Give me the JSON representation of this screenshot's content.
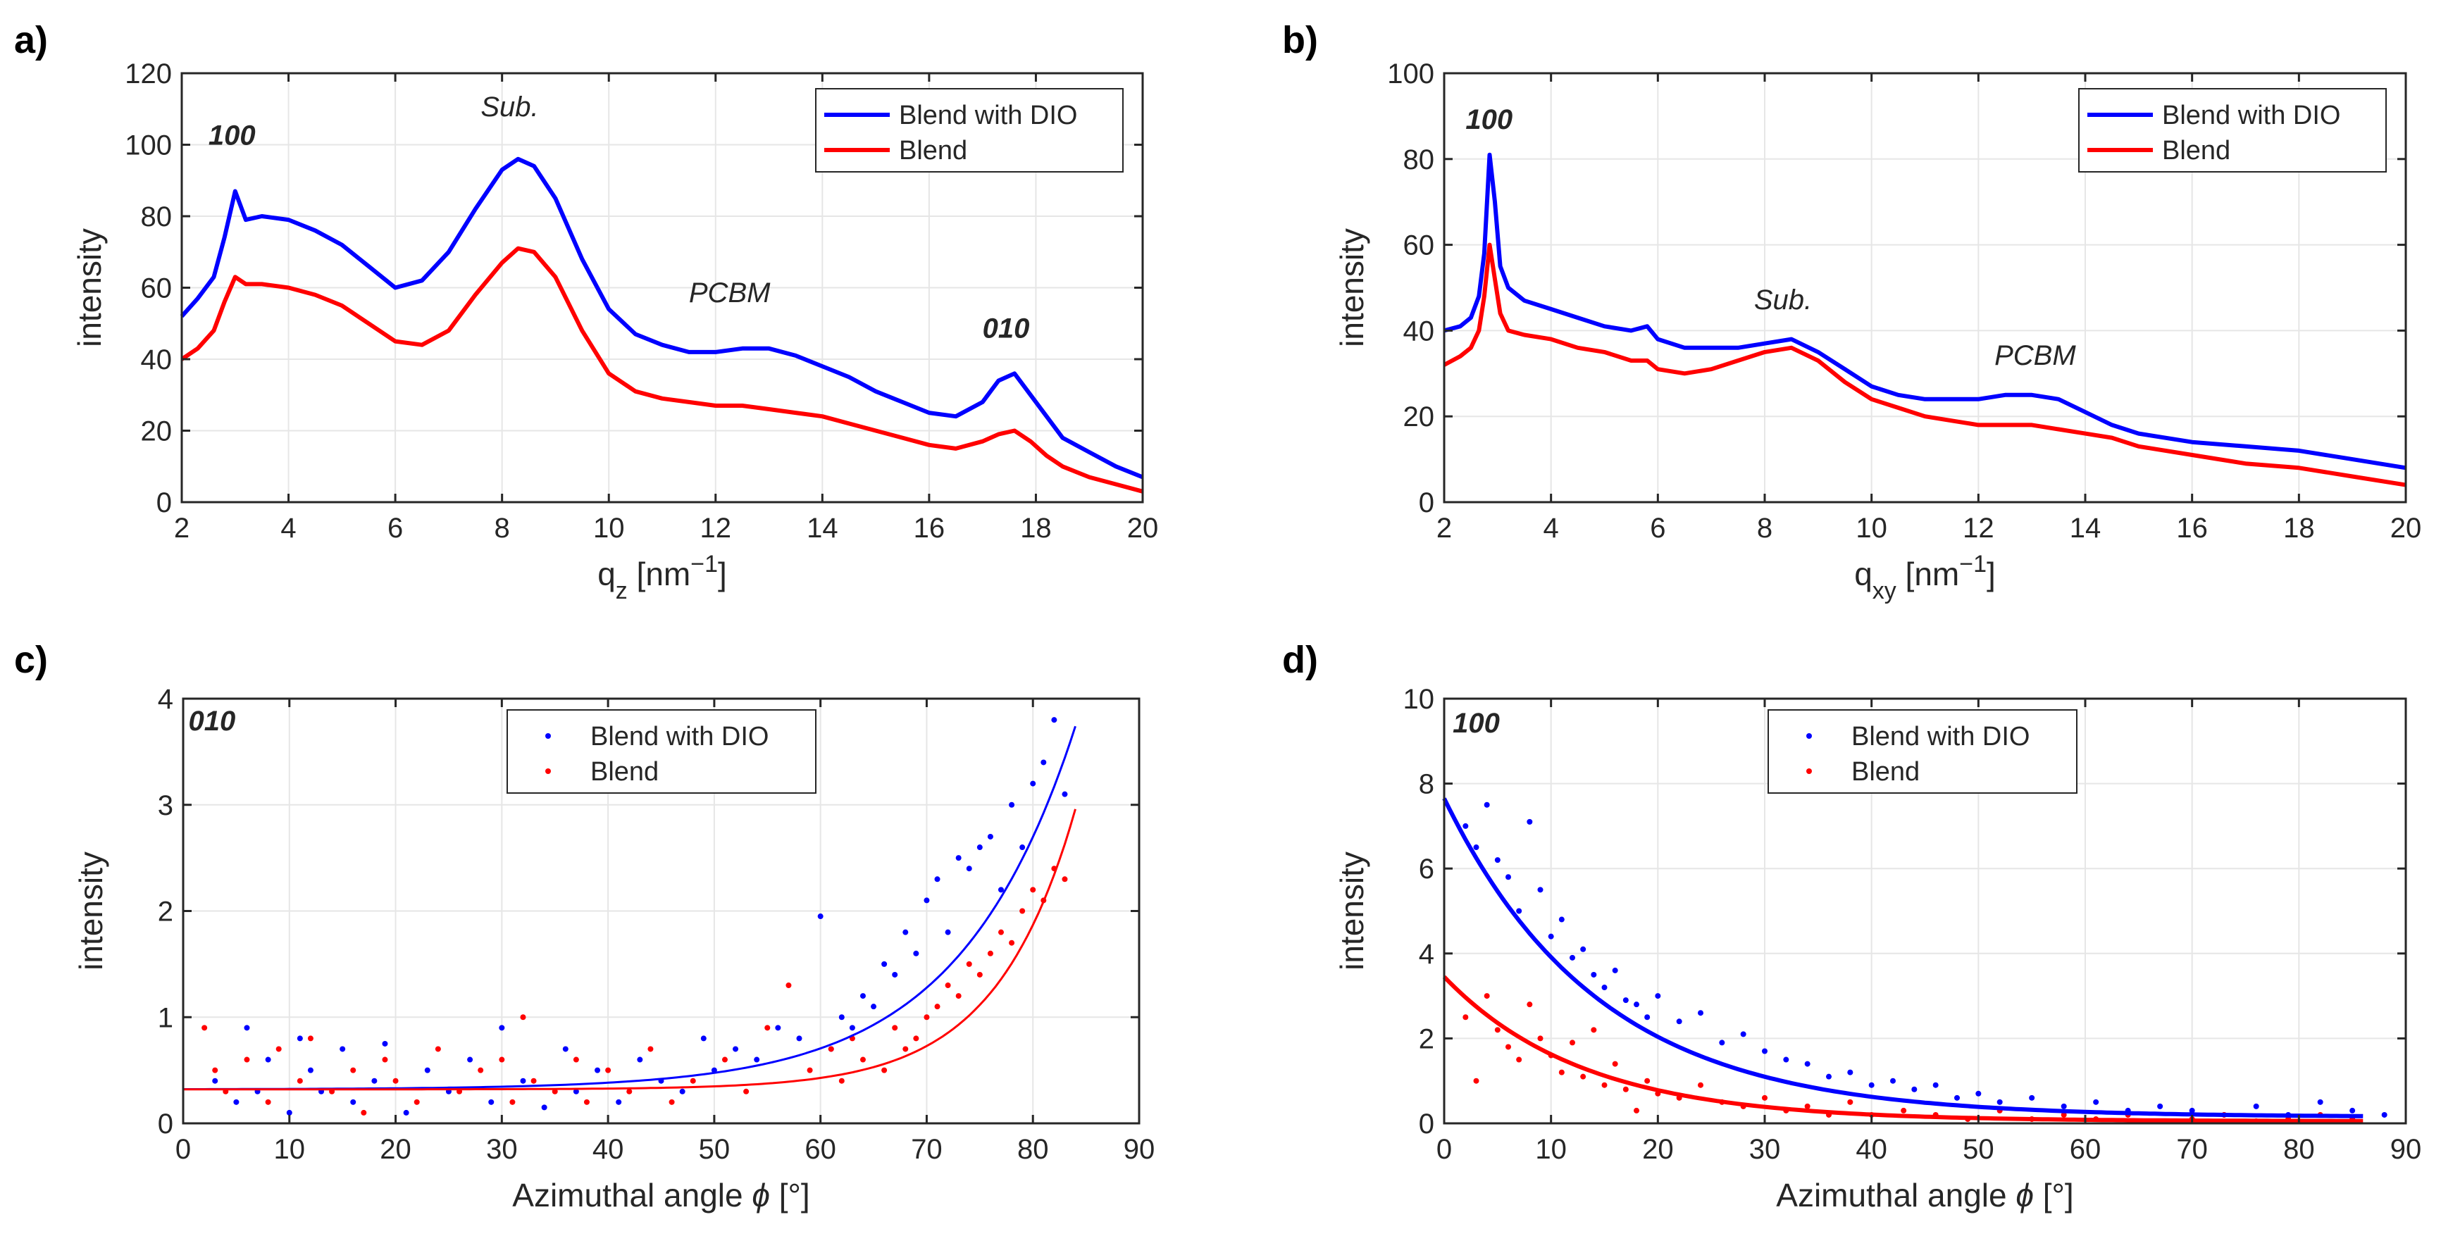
{
  "figure": {
    "panel_labels": [
      "a)",
      "b)",
      "c)",
      "d)"
    ]
  },
  "chart_data": [
    {
      "id": "a",
      "type": "line",
      "xlabel": "q",
      "xlabel_sub": "z",
      "xlabel_unit": " [nm",
      "xlabel_sup": "−1",
      "xlabel_close": "]",
      "ylabel": "intensity",
      "xlim": [
        2,
        20
      ],
      "ylim": [
        0,
        120
      ],
      "xticks": [
        2,
        4,
        6,
        8,
        10,
        12,
        14,
        16,
        18,
        20
      ],
      "yticks": [
        0,
        20,
        40,
        60,
        80,
        100,
        120
      ],
      "grid": true,
      "legend_position": "top-right",
      "annotations": [
        {
          "text": "100",
          "x": 2.5,
          "y": 100,
          "style": "bold-italic"
        },
        {
          "text": "Sub.",
          "x": 7.6,
          "y": 108,
          "style": "italic"
        },
        {
          "text": "PCBM",
          "x": 11.5,
          "y": 56,
          "style": "italic"
        },
        {
          "text": "010",
          "x": 17.0,
          "y": 46,
          "style": "bold-italic"
        }
      ],
      "series": [
        {
          "name": "Blend with DIO",
          "color": "#0000ff",
          "x": [
            2.0,
            2.3,
            2.6,
            2.8,
            3.0,
            3.2,
            3.5,
            4.0,
            4.5,
            5.0,
            5.5,
            6.0,
            6.5,
            7.0,
            7.5,
            8.0,
            8.3,
            8.6,
            9.0,
            9.5,
            10.0,
            10.5,
            11.0,
            11.5,
            12.0,
            12.5,
            13.0,
            13.5,
            14.0,
            14.5,
            15.0,
            15.5,
            16.0,
            16.5,
            17.0,
            17.3,
            17.6,
            17.9,
            18.2,
            18.5,
            19.0,
            19.5,
            20.0
          ],
          "y": [
            52,
            57,
            63,
            74,
            87,
            79,
            80,
            79,
            76,
            72,
            66,
            60,
            62,
            70,
            82,
            93,
            96,
            94,
            85,
            68,
            54,
            47,
            44,
            42,
            42,
            43,
            43,
            41,
            38,
            35,
            31,
            28,
            25,
            24,
            28,
            34,
            36,
            30,
            24,
            18,
            14,
            10,
            7
          ]
        },
        {
          "name": "Blend",
          "color": "#ff0000",
          "x": [
            2.0,
            2.3,
            2.6,
            2.8,
            3.0,
            3.2,
            3.5,
            4.0,
            4.5,
            5.0,
            5.5,
            6.0,
            6.5,
            7.0,
            7.5,
            8.0,
            8.3,
            8.6,
            9.0,
            9.5,
            10.0,
            10.5,
            11.0,
            11.5,
            12.0,
            12.5,
            13.0,
            13.5,
            14.0,
            14.5,
            15.0,
            15.5,
            16.0,
            16.5,
            17.0,
            17.3,
            17.6,
            17.9,
            18.2,
            18.5,
            19.0,
            19.5,
            20.0
          ],
          "y": [
            40,
            43,
            48,
            56,
            63,
            61,
            61,
            60,
            58,
            55,
            50,
            45,
            44,
            48,
            58,
            67,
            71,
            70,
            63,
            48,
            36,
            31,
            29,
            28,
            27,
            27,
            26,
            25,
            24,
            22,
            20,
            18,
            16,
            15,
            17,
            19,
            20,
            17,
            13,
            10,
            7,
            5,
            3
          ]
        }
      ]
    },
    {
      "id": "b",
      "type": "line",
      "xlabel": "q",
      "xlabel_sub": "xy",
      "xlabel_unit": " [nm",
      "xlabel_sup": "−1",
      "xlabel_close": "]",
      "ylabel": "intensity",
      "xlim": [
        2,
        20
      ],
      "ylim": [
        0,
        100
      ],
      "xticks": [
        2,
        4,
        6,
        8,
        10,
        12,
        14,
        16,
        18,
        20
      ],
      "yticks": [
        0,
        20,
        40,
        60,
        80,
        100
      ],
      "grid": true,
      "legend_position": "top-right",
      "annotations": [
        {
          "text": "100",
          "x": 2.4,
          "y": 87,
          "style": "bold-italic"
        },
        {
          "text": "Sub.",
          "x": 7.8,
          "y": 45,
          "style": "italic"
        },
        {
          "text": "PCBM",
          "x": 12.3,
          "y": 32,
          "style": "italic"
        }
      ],
      "series": [
        {
          "name": "Blend with DIO",
          "color": "#0000ff",
          "x": [
            2.0,
            2.3,
            2.5,
            2.65,
            2.75,
            2.85,
            2.95,
            3.05,
            3.2,
            3.5,
            4.0,
            4.5,
            5.0,
            5.5,
            5.8,
            6.0,
            6.5,
            7.0,
            7.5,
            8.0,
            8.5,
            9.0,
            9.5,
            10.0,
            10.5,
            11.0,
            11.5,
            12.0,
            12.5,
            13.0,
            13.5,
            14.0,
            14.5,
            15.0,
            16.0,
            17.0,
            18.0,
            19.0,
            20.0
          ],
          "y": [
            40,
            41,
            43,
            48,
            58,
            81,
            70,
            55,
            50,
            47,
            45,
            43,
            41,
            40,
            41,
            38,
            36,
            36,
            36,
            37,
            38,
            35,
            31,
            27,
            25,
            24,
            24,
            24,
            25,
            25,
            24,
            21,
            18,
            16,
            14,
            13,
            12,
            10,
            8
          ]
        },
        {
          "name": "Blend",
          "color": "#ff0000",
          "x": [
            2.0,
            2.3,
            2.5,
            2.65,
            2.75,
            2.85,
            2.95,
            3.05,
            3.2,
            3.5,
            4.0,
            4.5,
            5.0,
            5.5,
            5.8,
            6.0,
            6.5,
            7.0,
            7.5,
            8.0,
            8.5,
            9.0,
            9.5,
            10.0,
            10.5,
            11.0,
            11.5,
            12.0,
            12.5,
            13.0,
            13.5,
            14.0,
            14.5,
            15.0,
            16.0,
            17.0,
            18.0,
            19.0,
            20.0
          ],
          "y": [
            32,
            34,
            36,
            40,
            48,
            60,
            52,
            44,
            40,
            39,
            38,
            36,
            35,
            33,
            33,
            31,
            30,
            31,
            33,
            35,
            36,
            33,
            28,
            24,
            22,
            20,
            19,
            18,
            18,
            18,
            17,
            16,
            15,
            13,
            11,
            9,
            8,
            6,
            4
          ]
        }
      ]
    },
    {
      "id": "c",
      "type": "scatter",
      "xlabel": "Azimuthal angle ",
      "xlabel_symbol": "ϕ",
      "xlabel_unit": " [°]",
      "ylabel": "intensity",
      "xlim": [
        0,
        90
      ],
      "ylim": [
        0,
        4
      ],
      "xticks": [
        0,
        10,
        20,
        30,
        40,
        50,
        60,
        70,
        80,
        90
      ],
      "yticks": [
        0,
        1,
        2,
        3,
        4
      ],
      "grid": true,
      "legend_position": "top-center",
      "annotations": [
        {
          "text": "010",
          "x": 0.5,
          "y": 3.7,
          "style": "bold-italic"
        }
      ],
      "fits": [
        {
          "series": "Blend with DIO",
          "model": "base + A*exp((x-xref)/tau)",
          "base": 0.32,
          "A": 3.42,
          "xref": 84,
          "tau": 11.0,
          "xrange": [
            0,
            84
          ]
        },
        {
          "series": "Blend",
          "model": "base + A*exp((x-xref)/tau)",
          "base": 0.32,
          "A": 2.64,
          "xref": 84,
          "tau": 7.5,
          "xrange": [
            0,
            84
          ]
        }
      ],
      "series": [
        {
          "name": "Blend with DIO",
          "color": "#0000ff",
          "x": [
            3,
            5,
            6,
            7,
            8,
            10,
            11,
            12,
            13,
            15,
            16,
            18,
            19,
            21,
            23,
            25,
            27,
            29,
            30,
            32,
            34,
            36,
            37,
            39,
            41,
            43,
            45,
            47,
            49,
            50,
            52,
            54,
            56,
            58,
            60,
            61,
            62,
            63,
            64,
            65,
            66,
            67,
            68,
            69,
            70,
            71,
            72,
            73,
            74,
            75,
            76,
            77,
            78,
            79,
            80,
            81,
            82,
            83
          ],
          "y": [
            0.4,
            0.2,
            0.9,
            0.3,
            0.6,
            0.1,
            0.8,
            0.5,
            0.3,
            0.7,
            0.2,
            0.4,
            0.75,
            0.1,
            0.5,
            0.3,
            0.6,
            0.2,
            0.9,
            0.4,
            0.15,
            0.7,
            0.3,
            0.5,
            0.2,
            0.6,
            0.4,
            0.3,
            0.8,
            0.5,
            0.7,
            0.6,
            0.9,
            0.8,
            1.95,
            0.7,
            1.0,
            0.9,
            1.2,
            1.1,
            1.5,
            1.4,
            1.8,
            1.6,
            2.1,
            2.3,
            1.8,
            2.5,
            2.4,
            2.6,
            2.7,
            2.2,
            3.0,
            2.6,
            3.2,
            3.4,
            3.8,
            3.1
          ]
        },
        {
          "name": "Blend",
          "color": "#ff0000",
          "x": [
            2,
            3,
            4,
            6,
            8,
            9,
            11,
            12,
            14,
            16,
            17,
            19,
            20,
            22,
            24,
            26,
            28,
            30,
            31,
            32,
            33,
            35,
            37,
            38,
            40,
            42,
            44,
            46,
            48,
            51,
            53,
            55,
            57,
            59,
            61,
            62,
            63,
            64,
            66,
            67,
            68,
            69,
            70,
            71,
            72,
            73,
            74,
            75,
            76,
            77,
            78,
            79,
            80,
            81,
            82,
            83
          ],
          "y": [
            0.9,
            0.5,
            0.3,
            0.6,
            0.2,
            0.7,
            0.4,
            0.8,
            0.3,
            0.5,
            0.1,
            0.6,
            0.4,
            0.2,
            0.7,
            0.3,
            0.5,
            0.6,
            0.2,
            1.0,
            0.4,
            0.3,
            0.6,
            0.2,
            0.5,
            0.3,
            0.7,
            0.2,
            0.4,
            0.6,
            0.3,
            0.9,
            1.3,
            0.5,
            0.7,
            0.4,
            0.8,
            0.6,
            0.5,
            0.9,
            0.7,
            0.8,
            1.0,
            1.1,
            1.3,
            1.2,
            1.5,
            1.4,
            1.6,
            1.8,
            1.7,
            2.0,
            2.2,
            2.1,
            2.4,
            2.3
          ]
        }
      ]
    },
    {
      "id": "d",
      "type": "scatter",
      "xlabel": "Azimuthal angle ",
      "xlabel_symbol": "ϕ",
      "xlabel_unit": " [°]",
      "ylabel": "intensity",
      "xlim": [
        0,
        90
      ],
      "ylim": [
        0,
        10
      ],
      "xticks": [
        0,
        10,
        20,
        30,
        40,
        50,
        60,
        70,
        80,
        90
      ],
      "yticks": [
        0,
        2,
        4,
        6,
        8,
        10
      ],
      "grid": true,
      "legend_position": "top-center",
      "annotations": [
        {
          "text": "100",
          "x": 0.8,
          "y": 9.2,
          "style": "bold-italic"
        }
      ],
      "fits": [
        {
          "series": "Blend with DIO",
          "model": "base + A*exp(-x/tau)",
          "base": 0.15,
          "A": 7.5,
          "tau": 14.5,
          "xrange": [
            0,
            86
          ]
        },
        {
          "series": "Blend",
          "model": "base + A*exp(-x/tau)",
          "base": 0.05,
          "A": 3.4,
          "tau": 13.0,
          "xrange": [
            0,
            86
          ]
        }
      ],
      "series": [
        {
          "name": "Blend with DIO",
          "color": "#0000ff",
          "x": [
            2,
            3,
            4,
            5,
            6,
            7,
            8,
            9,
            10,
            11,
            12,
            13,
            14,
            15,
            16,
            17,
            18,
            19,
            20,
            22,
            24,
            26,
            28,
            30,
            32,
            34,
            36,
            38,
            40,
            42,
            44,
            46,
            48,
            50,
            52,
            55,
            58,
            61,
            64,
            67,
            70,
            73,
            76,
            79,
            82,
            85,
            88
          ],
          "y": [
            7.0,
            6.5,
            7.5,
            6.2,
            5.8,
            5.0,
            7.1,
            5.5,
            4.4,
            4.8,
            3.9,
            4.1,
            3.5,
            3.2,
            3.6,
            2.9,
            2.8,
            2.5,
            3.0,
            2.4,
            2.6,
            1.9,
            2.1,
            1.7,
            1.5,
            1.4,
            1.1,
            1.2,
            0.9,
            1.0,
            0.8,
            0.9,
            0.6,
            0.7,
            0.5,
            0.6,
            0.4,
            0.5,
            0.3,
            0.4,
            0.3,
            0.2,
            0.4,
            0.2,
            0.5,
            0.3,
            0.2
          ]
        },
        {
          "name": "Blend",
          "color": "#ff0000",
          "x": [
            2,
            3,
            4,
            5,
            6,
            7,
            8,
            9,
            10,
            11,
            12,
            13,
            14,
            15,
            16,
            17,
            18,
            19,
            20,
            22,
            24,
            26,
            28,
            30,
            32,
            34,
            36,
            38,
            40,
            43,
            46,
            49,
            52,
            55,
            58,
            61,
            64,
            67,
            70,
            73,
            76,
            79,
            82,
            85
          ],
          "y": [
            2.5,
            1.0,
            3.0,
            2.2,
            1.8,
            1.5,
            2.8,
            2.0,
            1.6,
            1.2,
            1.9,
            1.1,
            2.2,
            0.9,
            1.4,
            0.8,
            0.3,
            1.0,
            0.7,
            0.6,
            0.9,
            0.5,
            0.4,
            0.6,
            0.3,
            0.4,
            0.2,
            0.5,
            0.2,
            0.3,
            0.2,
            0.1,
            0.3,
            0.1,
            0.2,
            0.1,
            0.2,
            0.05,
            0.1,
            0.2,
            0.05,
            0.1,
            0.2,
            0.1
          ]
        }
      ]
    }
  ]
}
